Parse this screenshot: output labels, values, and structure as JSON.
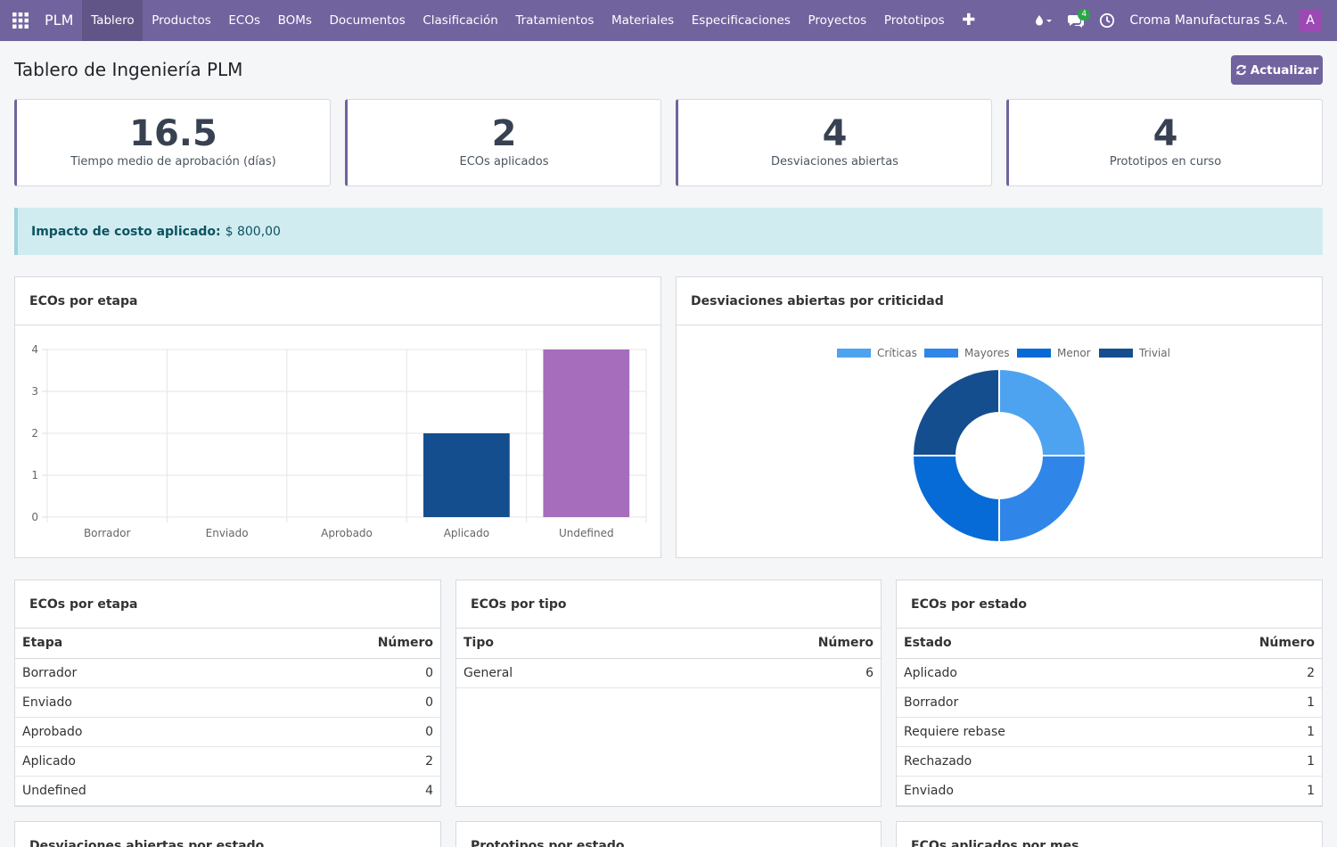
{
  "navbar": {
    "app_name": "PLM",
    "menu": [
      "Tablero",
      "Productos",
      "ECOs",
      "BOMs",
      "Documentos",
      "Clasificación",
      "Tratamientos",
      "Materiales",
      "Especificaciones",
      "Proyectos",
      "Prototipos"
    ],
    "active_menu": "Tablero",
    "plus_label": "✚",
    "messages_badge": "4",
    "company": "Croma Manufacturas S.A.",
    "avatar_letter": "A"
  },
  "header": {
    "title": "Tablero de Ingeniería PLM",
    "refresh_label": "Actualizar"
  },
  "kpis": [
    {
      "value": "16.5",
      "label": "Tiempo medio de aprobación (días)"
    },
    {
      "value": "2",
      "label": "ECOs aplicados"
    },
    {
      "value": "4",
      "label": "Desviaciones abiertas"
    },
    {
      "value": "4",
      "label": "Prototipos en curso"
    }
  ],
  "alert": {
    "label": "Impacto de costo aplicado:",
    "value": "$ 800,00"
  },
  "bar_panel_title": "ECOs por etapa",
  "donut_panel_title": "Desviaciones abiertas por criticidad",
  "chart_data": [
    {
      "type": "bar",
      "title": "ECOs por etapa",
      "categories": [
        "Borrador",
        "Enviado",
        "Aprobado",
        "Aplicado",
        "Undefined"
      ],
      "values": [
        0,
        0,
        0,
        2,
        4
      ],
      "colors": [
        "#154e8f",
        "#154e8f",
        "#154e8f",
        "#154e8f",
        "#a66dbd"
      ],
      "ylim": [
        0,
        4
      ],
      "yticks": [
        0,
        1,
        2,
        3,
        4
      ],
      "grid": true
    },
    {
      "type": "pie",
      "title": "Desviaciones abiertas por criticidad",
      "labels": [
        "Críticas",
        "Mayores",
        "Menor",
        "Trivial"
      ],
      "values": [
        1,
        1,
        1,
        1
      ],
      "colors": [
        "#4da3ef",
        "#2f86e8",
        "#066bd6",
        "#154e8f"
      ],
      "legend": "top"
    }
  ],
  "tables": {
    "etapa": {
      "title": "ECOs por etapa",
      "headers": [
        "Etapa",
        "Número"
      ],
      "rows": [
        [
          "Borrador",
          "0"
        ],
        [
          "Enviado",
          "0"
        ],
        [
          "Aprobado",
          "0"
        ],
        [
          "Aplicado",
          "2"
        ],
        [
          "Undefined",
          "4"
        ]
      ]
    },
    "tipo": {
      "title": "ECOs por tipo",
      "headers": [
        "Tipo",
        "Número"
      ],
      "rows": [
        [
          "General",
          "6"
        ]
      ]
    },
    "estado": {
      "title": "ECOs por estado",
      "headers": [
        "Estado",
        "Número"
      ],
      "rows": [
        [
          "Aplicado",
          "2"
        ],
        [
          "Borrador",
          "1"
        ],
        [
          "Requiere rebase",
          "1"
        ],
        [
          "Rechazado",
          "1"
        ],
        [
          "Enviado",
          "1"
        ]
      ]
    }
  },
  "bottom_panels": [
    "Desviaciones abiertas por estado",
    "Prototipos por estado",
    "ECOs aplicados por mes"
  ]
}
